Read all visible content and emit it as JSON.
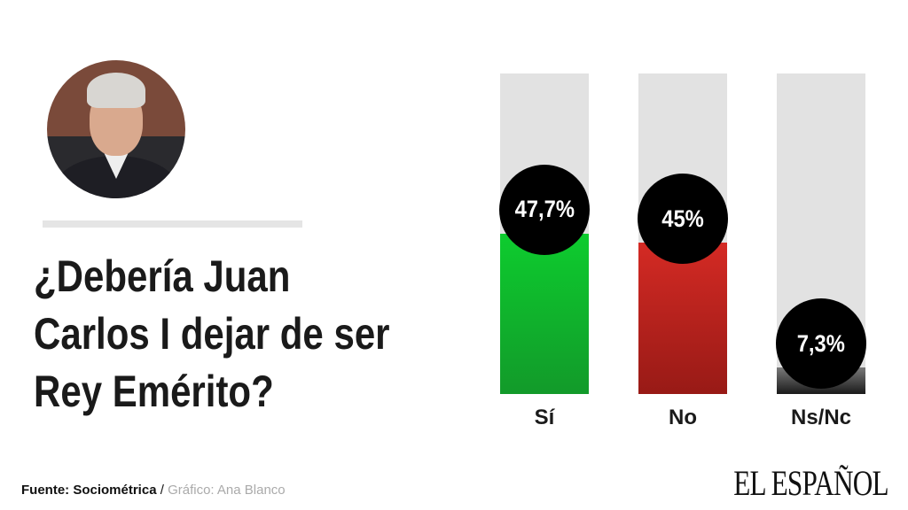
{
  "title_lines": [
    "¿Debería Juan",
    "Carlos I dejar de ser",
    "Rey Emérito?"
  ],
  "footer": {
    "source": "Fuente: Sociométrica",
    "separator": " / ",
    "credit": "Gráfico: Ana Blanco"
  },
  "logo": "EL ESPAÑOL",
  "chart_data": {
    "type": "bar",
    "title": "¿Debería Juan Carlos I dejar de ser Rey Emérito?",
    "categories": [
      "Sí",
      "No",
      "Ns/Nc"
    ],
    "values": [
      47.7,
      45,
      7.3
    ],
    "labels": [
      "47,7%",
      "45%",
      "7,3%"
    ],
    "colors": [
      [
        "#0dcc2e",
        "#129a2a"
      ],
      [
        "#d42a24",
        "#981a16"
      ],
      [
        "#7a7a7a",
        "#1a1a1a"
      ]
    ],
    "track_color": "#e2e2e2",
    "ylim": [
      0,
      96
    ]
  }
}
